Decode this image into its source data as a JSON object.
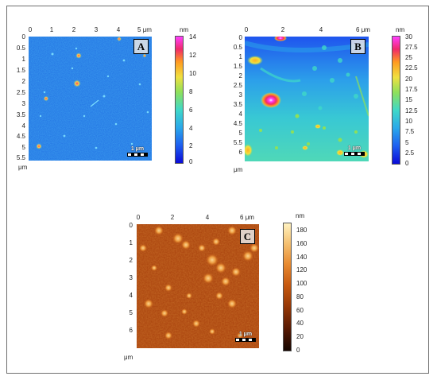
{
  "panels": {
    "a": {
      "label": "A",
      "x_ticks": [
        "0",
        "1",
        "2",
        "3",
        "4",
        "5 μm"
      ],
      "y_ticks": [
        "0",
        "0.5",
        "1",
        "1.5",
        "2",
        "2.5",
        "3",
        "3.5",
        "4",
        "4.5",
        "5",
        "5.5"
      ],
      "axis_unit": "μm",
      "scale_bar": "1 μm",
      "colorbar_unit": "nm",
      "colorbar_ticks": [
        "14",
        "12",
        "10",
        "8",
        "6",
        "4",
        "2",
        "0"
      ],
      "colormap": [
        "#0b0bd8",
        "#1e5ff0",
        "#2aa8ea",
        "#3fd8c8",
        "#8ee05a",
        "#f0e040",
        "#ff9a20",
        "#f02a6a",
        "#ff40ff"
      ]
    },
    "b": {
      "label": "B",
      "x_ticks": [
        "0",
        "2",
        "4",
        "6 μm"
      ],
      "y_ticks": [
        "0",
        "0.5",
        "1",
        "1.5",
        "2",
        "2.5",
        "3",
        "3.5",
        "4",
        "4.5",
        "5",
        "5.5",
        "6"
      ],
      "axis_unit": "μm",
      "scale_bar": "1 μm",
      "colorbar_unit": "nm",
      "colorbar_ticks": [
        "30",
        "27.5",
        "25",
        "22.5",
        "20",
        "17.5",
        "15",
        "12.5",
        "10",
        "7.5",
        "5",
        "2.5",
        "0"
      ],
      "colormap": [
        "#0b0bd8",
        "#1e5ff0",
        "#2aa8ea",
        "#3fd8c8",
        "#8ee05a",
        "#f0e040",
        "#ff9a20",
        "#f02a6a",
        "#ff40ff"
      ]
    },
    "c": {
      "label": "C",
      "x_ticks": [
        "0",
        "2",
        "4",
        "6 μm"
      ],
      "y_ticks": [
        "0",
        "1",
        "2",
        "3",
        "4",
        "5",
        "6"
      ],
      "axis_unit": "μm",
      "scale_bar": "1 μm",
      "colorbar_unit": "nm",
      "colorbar_ticks": [
        "180",
        "160",
        "140",
        "120",
        "100",
        "80",
        "60",
        "40",
        "20",
        "0"
      ],
      "colormap": [
        "#150500",
        "#5a1a02",
        "#9a3a06",
        "#c85a10",
        "#e88a30",
        "#f5c070",
        "#fff2c0"
      ]
    }
  }
}
